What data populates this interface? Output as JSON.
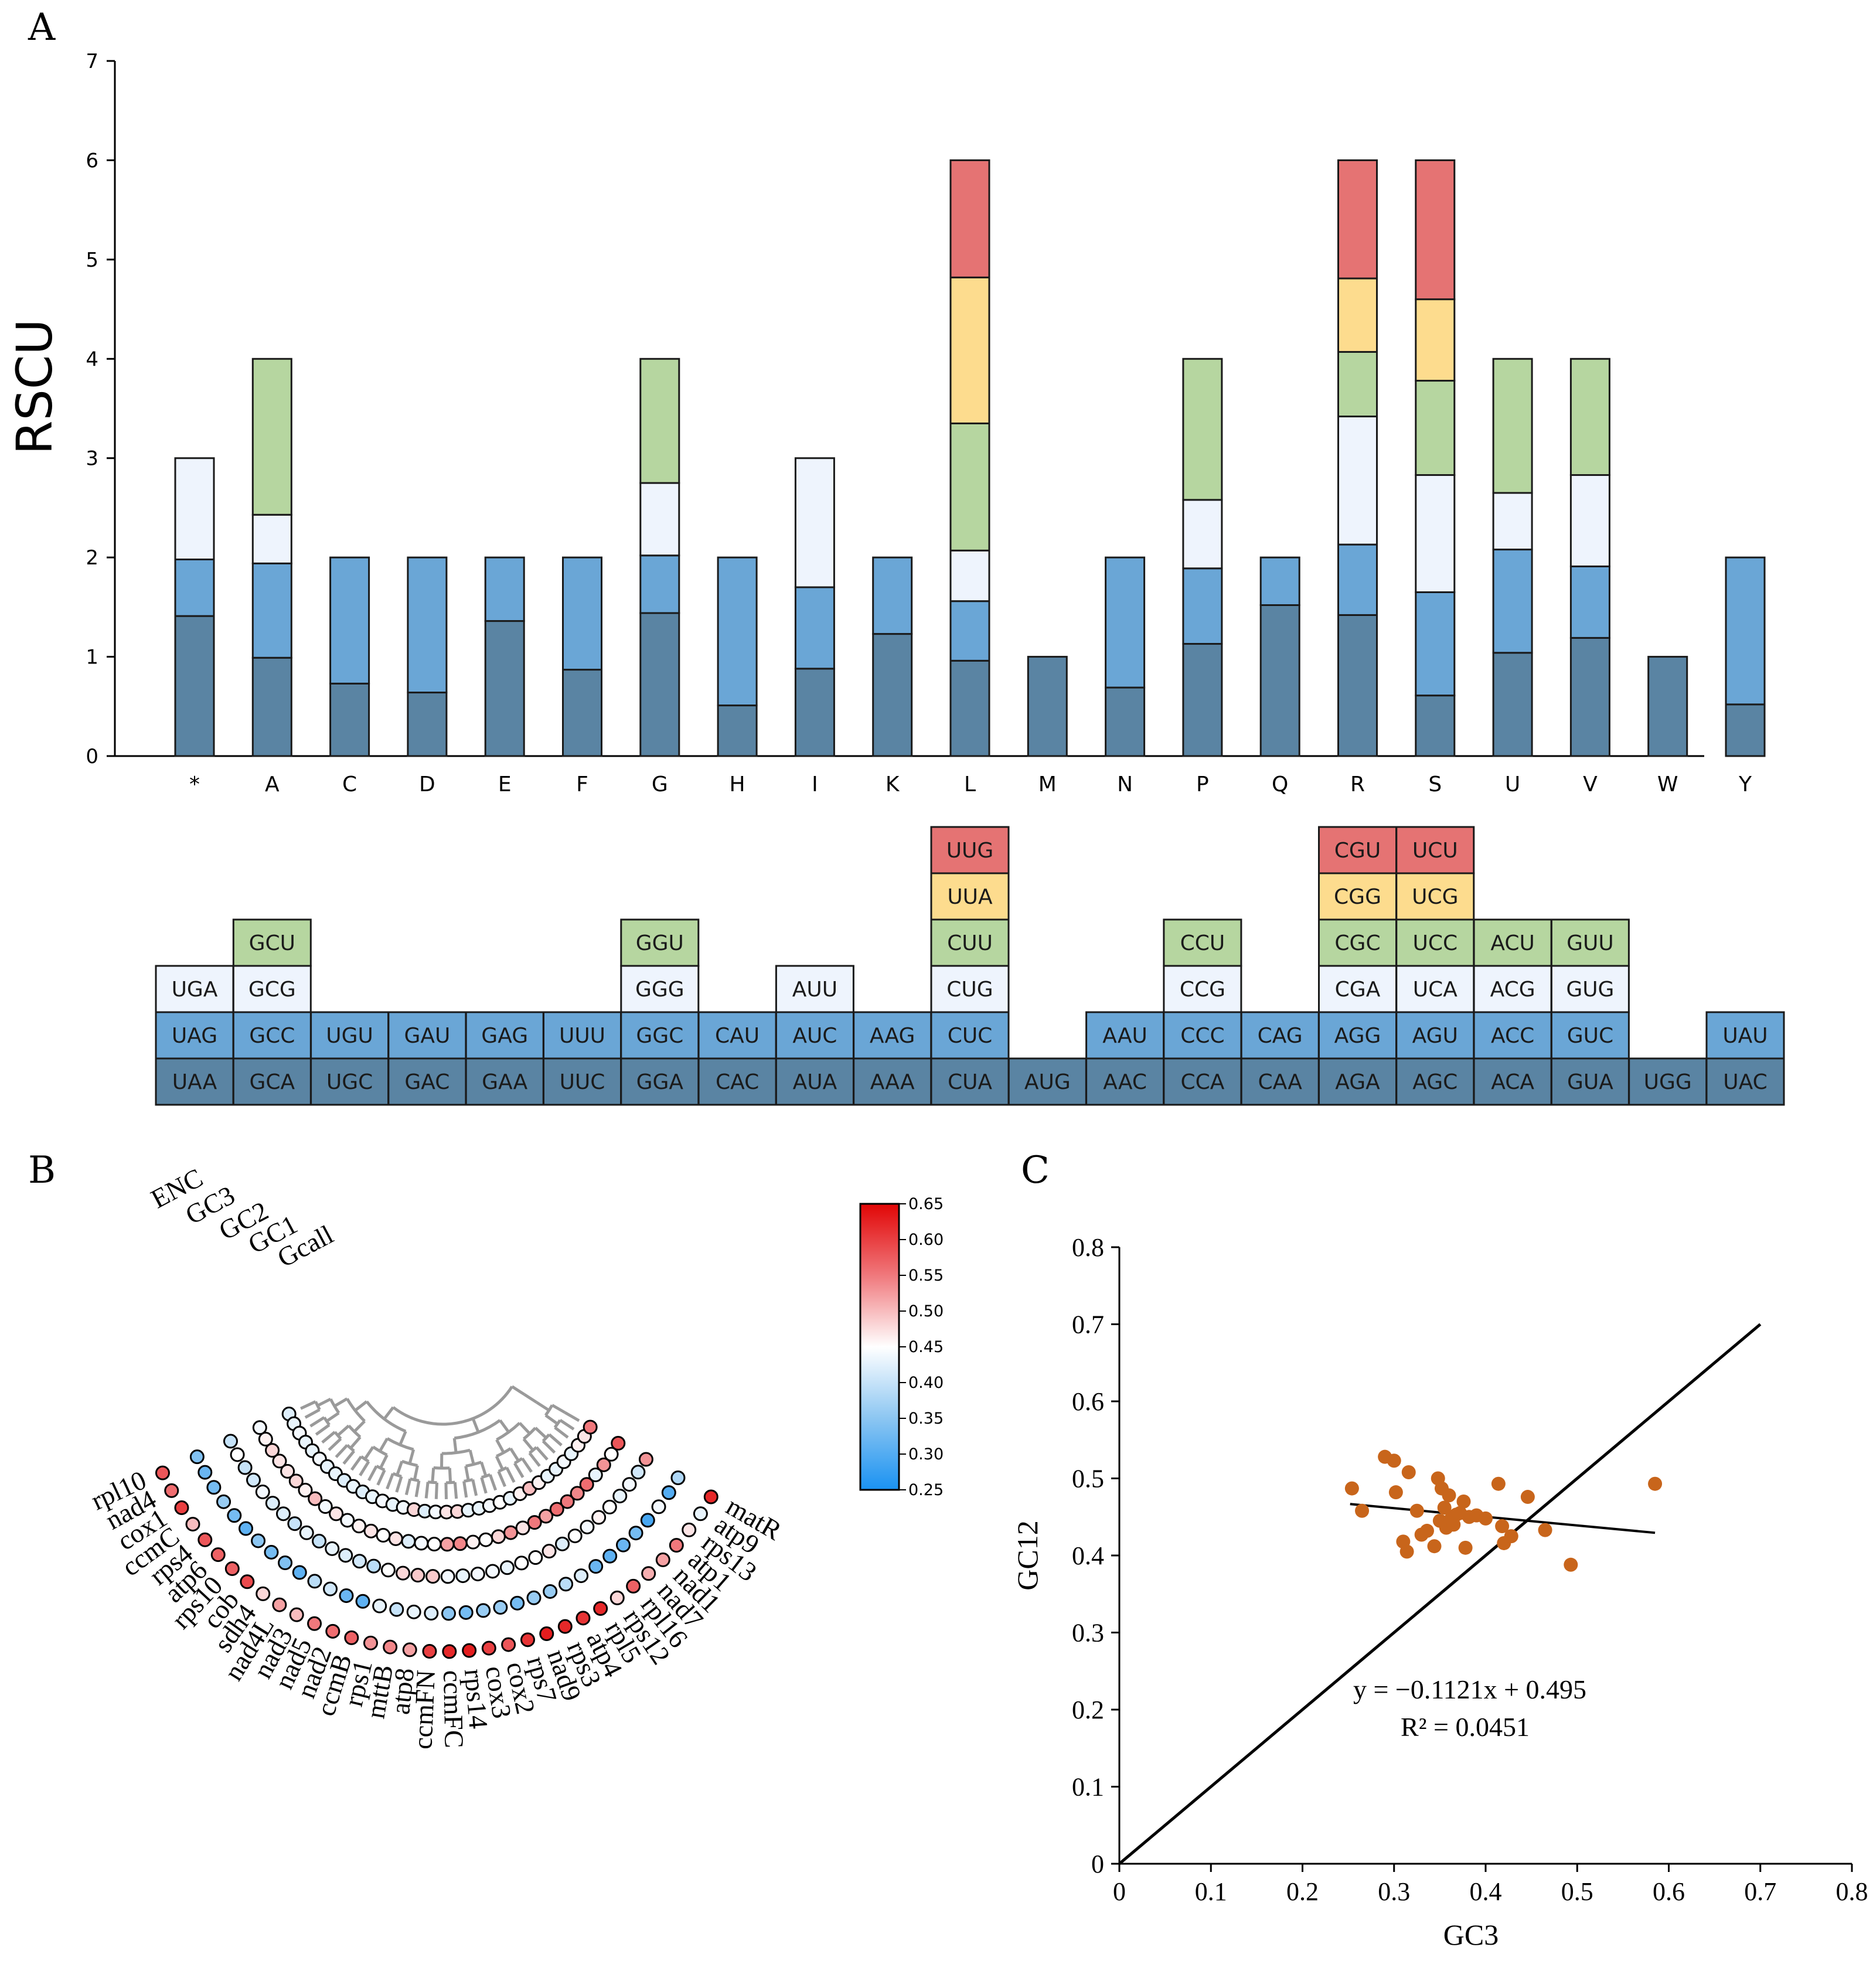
{
  "panels": {
    "a": "A",
    "b": "B",
    "c": "C"
  },
  "colors": {
    "c1": "#5a84a3",
    "c2": "#6aa6d6",
    "c3": "#eef4fd",
    "c4": "#b6d6a0",
    "c5": "#fddc8e",
    "c6": "#e57373",
    "cell_border": "#1a1a1a",
    "scatter_point": "#c8651b",
    "tree_line": "#9a9a9a"
  },
  "chart_data": [
    {
      "type": "bar",
      "stacked": true,
      "title": "",
      "ylabel": "RSCU",
      "xlabel": "",
      "ylim": [
        0,
        7
      ],
      "yticks": [
        0,
        1,
        2,
        3,
        4,
        5,
        6,
        7
      ],
      "categories": [
        "*",
        "A",
        "C",
        "D",
        "E",
        "F",
        "G",
        "H",
        "I",
        "K",
        "L",
        "M",
        "N",
        "P",
        "Q",
        "R",
        "S",
        "U",
        "V",
        "W",
        "Y"
      ],
      "stacks": [
        [
          {
            "codon": "UAA",
            "value": 1.41
          },
          {
            "codon": "UAG",
            "value": 0.57
          },
          {
            "codon": "UGA",
            "value": 1.02
          }
        ],
        [
          {
            "codon": "GCA",
            "value": 0.99
          },
          {
            "codon": "GCC",
            "value": 0.95
          },
          {
            "codon": "GCG",
            "value": 0.49
          },
          {
            "codon": "GCU",
            "value": 1.57
          }
        ],
        [
          {
            "codon": "UGC",
            "value": 0.73
          },
          {
            "codon": "UGU",
            "value": 1.27
          }
        ],
        [
          {
            "codon": "GAC",
            "value": 0.64
          },
          {
            "codon": "GAU",
            "value": 1.36
          }
        ],
        [
          {
            "codon": "GAA",
            "value": 1.36
          },
          {
            "codon": "GAG",
            "value": 0.64
          }
        ],
        [
          {
            "codon": "UUC",
            "value": 0.87
          },
          {
            "codon": "UUU",
            "value": 1.13
          }
        ],
        [
          {
            "codon": "GGA",
            "value": 1.44
          },
          {
            "codon": "GGC",
            "value": 0.58
          },
          {
            "codon": "GGG",
            "value": 0.73
          },
          {
            "codon": "GGU",
            "value": 1.25
          }
        ],
        [
          {
            "codon": "CAC",
            "value": 0.51
          },
          {
            "codon": "CAU",
            "value": 1.49
          }
        ],
        [
          {
            "codon": "AUA",
            "value": 0.88
          },
          {
            "codon": "AUC",
            "value": 0.82
          },
          {
            "codon": "AUU",
            "value": 1.3
          }
        ],
        [
          {
            "codon": "AAA",
            "value": 1.23
          },
          {
            "codon": "AAG",
            "value": 0.77
          }
        ],
        [
          {
            "codon": "CUA",
            "value": 0.96
          },
          {
            "codon": "CUC",
            "value": 0.6
          },
          {
            "codon": "CUG",
            "value": 0.51
          },
          {
            "codon": "CUU",
            "value": 1.28
          },
          {
            "codon": "UUA",
            "value": 1.47
          },
          {
            "codon": "UUG",
            "value": 1.18
          }
        ],
        [
          {
            "codon": "AUG",
            "value": 1.0
          }
        ],
        [
          {
            "codon": "AAC",
            "value": 0.69
          },
          {
            "codon": "AAU",
            "value": 1.31
          }
        ],
        [
          {
            "codon": "CCA",
            "value": 1.13
          },
          {
            "codon": "CCC",
            "value": 0.76
          },
          {
            "codon": "CCG",
            "value": 0.69
          },
          {
            "codon": "CCU",
            "value": 1.42
          }
        ],
        [
          {
            "codon": "CAA",
            "value": 1.52
          },
          {
            "codon": "CAG",
            "value": 0.48
          }
        ],
        [
          {
            "codon": "AGA",
            "value": 1.42
          },
          {
            "codon": "AGG",
            "value": 0.71
          },
          {
            "codon": "CGA",
            "value": 1.29
          },
          {
            "codon": "CGC",
            "value": 0.65
          },
          {
            "codon": "CGG",
            "value": 0.74
          },
          {
            "codon": "CGU",
            "value": 1.19
          }
        ],
        [
          {
            "codon": "AGC",
            "value": 0.61
          },
          {
            "codon": "AGU",
            "value": 1.04
          },
          {
            "codon": "UCA",
            "value": 1.18
          },
          {
            "codon": "UCC",
            "value": 0.95
          },
          {
            "codon": "UCG",
            "value": 0.82
          },
          {
            "codon": "UCU",
            "value": 1.4
          }
        ],
        [
          {
            "codon": "ACA",
            "value": 1.04
          },
          {
            "codon": "ACC",
            "value": 1.04
          },
          {
            "codon": "ACG",
            "value": 0.57
          },
          {
            "codon": "ACU",
            "value": 1.35
          }
        ],
        [
          {
            "codon": "GUA",
            "value": 1.19
          },
          {
            "codon": "GUC",
            "value": 0.72
          },
          {
            "codon": "GUG",
            "value": 0.92
          },
          {
            "codon": "GUU",
            "value": 1.17
          }
        ],
        [
          {
            "codon": "UGG",
            "value": 1.0
          }
        ],
        [
          {
            "codon": "UAC",
            "value": 0.52
          },
          {
            "codon": "UAU",
            "value": 1.48
          }
        ]
      ]
    },
    {
      "type": "heatmap",
      "layout": "circular",
      "ring_labels": [
        "ENC",
        "GC3",
        "GC2",
        "GC1",
        "Gcall"
      ],
      "genes": [
        "rpl10",
        "nad4",
        "cox1",
        "ccmC",
        "rps4",
        "atp6",
        "rps10",
        "cob",
        "sdh4",
        "nad4L",
        "nad3",
        "nad5",
        "nad2",
        "ccmB",
        "rps1",
        "mttB",
        "atp8",
        "ccmFN",
        "ccmFC",
        "rps14",
        "cox3",
        "cox2",
        "rps7",
        "nad9",
        "rps3",
        "atp4",
        "rpl5",
        "rps12",
        "rpl16",
        "nad7",
        "nad1",
        "atp1",
        "rps13",
        "atp9",
        "matR"
      ],
      "colorbar": {
        "min": 0.25,
        "max": 0.65,
        "ticks": [
          "0.65",
          "0.60",
          "0.55",
          "0.50",
          "0.45",
          "0.40",
          "0.35",
          "0.30",
          "0.25"
        ]
      },
      "values": [
        [
          0.58,
          0.34,
          0.4,
          0.44,
          0.42
        ],
        [
          0.56,
          0.32,
          0.45,
          0.46,
          0.43
        ],
        [
          0.6,
          0.33,
          0.4,
          0.48,
          0.44
        ],
        [
          0.5,
          0.36,
          0.41,
          0.47,
          0.43
        ],
        [
          0.58,
          0.33,
          0.44,
          0.47,
          0.43
        ],
        [
          0.57,
          0.31,
          0.42,
          0.48,
          0.44
        ],
        [
          0.57,
          0.35,
          0.42,
          0.46,
          0.43
        ],
        [
          0.59,
          0.33,
          0.4,
          0.5,
          0.43
        ],
        [
          0.48,
          0.34,
          0.43,
          0.44,
          0.42
        ],
        [
          0.52,
          0.31,
          0.4,
          0.47,
          0.43
        ],
        [
          0.5,
          0.39,
          0.43,
          0.44,
          0.42
        ],
        [
          0.55,
          0.41,
          0.42,
          0.46,
          0.43
        ],
        [
          0.56,
          0.32,
          0.41,
          0.47,
          0.44
        ],
        [
          0.57,
          0.31,
          0.39,
          0.45,
          0.43
        ],
        [
          0.53,
          0.43,
          0.45,
          0.47,
          0.44
        ],
        [
          0.54,
          0.4,
          0.48,
          0.42,
          0.48
        ],
        [
          0.52,
          0.43,
          0.49,
          0.44,
          0.42
        ],
        [
          0.6,
          0.42,
          0.49,
          0.45,
          0.44
        ],
        [
          0.62,
          0.35,
          0.44,
          0.52,
          0.47
        ],
        [
          0.63,
          0.33,
          0.43,
          0.54,
          0.48
        ],
        [
          0.6,
          0.36,
          0.44,
          0.46,
          0.43
        ],
        [
          0.58,
          0.36,
          0.44,
          0.45,
          0.43
        ],
        [
          0.61,
          0.33,
          0.43,
          0.48,
          0.44
        ],
        [
          0.63,
          0.36,
          0.45,
          0.53,
          0.45
        ],
        [
          0.62,
          0.36,
          0.45,
          0.47,
          0.43
        ],
        [
          0.61,
          0.39,
          0.47,
          0.55,
          0.46
        ],
        [
          0.62,
          0.42,
          0.42,
          0.52,
          0.5
        ],
        [
          0.48,
          0.32,
          0.45,
          0.56,
          0.46
        ],
        [
          0.57,
          0.31,
          0.44,
          0.55,
          0.43
        ],
        [
          0.51,
          0.32,
          0.46,
          0.54,
          0.43
        ],
        [
          0.52,
          0.33,
          0.45,
          0.56,
          0.44
        ],
        [
          0.55,
          0.29,
          0.43,
          0.43,
          0.43
        ],
        [
          0.47,
          0.44,
          0.44,
          0.53,
          0.46
        ],
        [
          0.43,
          0.3,
          0.41,
          0.45,
          0.47
        ],
        [
          0.62,
          0.38,
          0.53,
          0.58,
          0.55
        ]
      ]
    },
    {
      "type": "scatter",
      "title": "",
      "xlabel": "GC3",
      "ylabel": "GC12",
      "xlim": [
        0,
        0.8
      ],
      "ylim": [
        0,
        0.8
      ],
      "xticks": [
        "0",
        "0.1",
        "0.2",
        "0.3",
        "0.4",
        "0.5",
        "0.6",
        "0.7",
        "0.8"
      ],
      "yticks": [
        "0",
        "0.1",
        "0.2",
        "0.3",
        "0.4",
        "0.5",
        "0.6",
        "0.7",
        "0.8"
      ],
      "points": [
        [
          0.254,
          0.487
        ],
        [
          0.265,
          0.458
        ],
        [
          0.29,
          0.528
        ],
        [
          0.3,
          0.523
        ],
        [
          0.302,
          0.482
        ],
        [
          0.31,
          0.418
        ],
        [
          0.314,
          0.405
        ],
        [
          0.316,
          0.508
        ],
        [
          0.325,
          0.458
        ],
        [
          0.33,
          0.427
        ],
        [
          0.336,
          0.432
        ],
        [
          0.344,
          0.412
        ],
        [
          0.348,
          0.5
        ],
        [
          0.35,
          0.445
        ],
        [
          0.352,
          0.487
        ],
        [
          0.355,
          0.462
        ],
        [
          0.357,
          0.436
        ],
        [
          0.36,
          0.478
        ],
        [
          0.362,
          0.447
        ],
        [
          0.365,
          0.44
        ],
        [
          0.368,
          0.453
        ],
        [
          0.372,
          0.455
        ],
        [
          0.376,
          0.47
        ],
        [
          0.378,
          0.41
        ],
        [
          0.382,
          0.45
        ],
        [
          0.39,
          0.452
        ],
        [
          0.4,
          0.448
        ],
        [
          0.414,
          0.493
        ],
        [
          0.418,
          0.438
        ],
        [
          0.42,
          0.416
        ],
        [
          0.428,
          0.425
        ],
        [
          0.446,
          0.476
        ],
        [
          0.465,
          0.433
        ],
        [
          0.493,
          0.388
        ],
        [
          0.585,
          0.493
        ]
      ],
      "regression": {
        "slope": -0.1121,
        "intercept": 0.495,
        "x_range": [
          0.252,
          0.585
        ]
      },
      "reference_line": {
        "x": [
          0,
          0.7
        ],
        "y": [
          0,
          0.7
        ]
      },
      "equation_label": "y = −0.1121x + 0.495",
      "r2_label": "R² = 0.0451"
    }
  ]
}
